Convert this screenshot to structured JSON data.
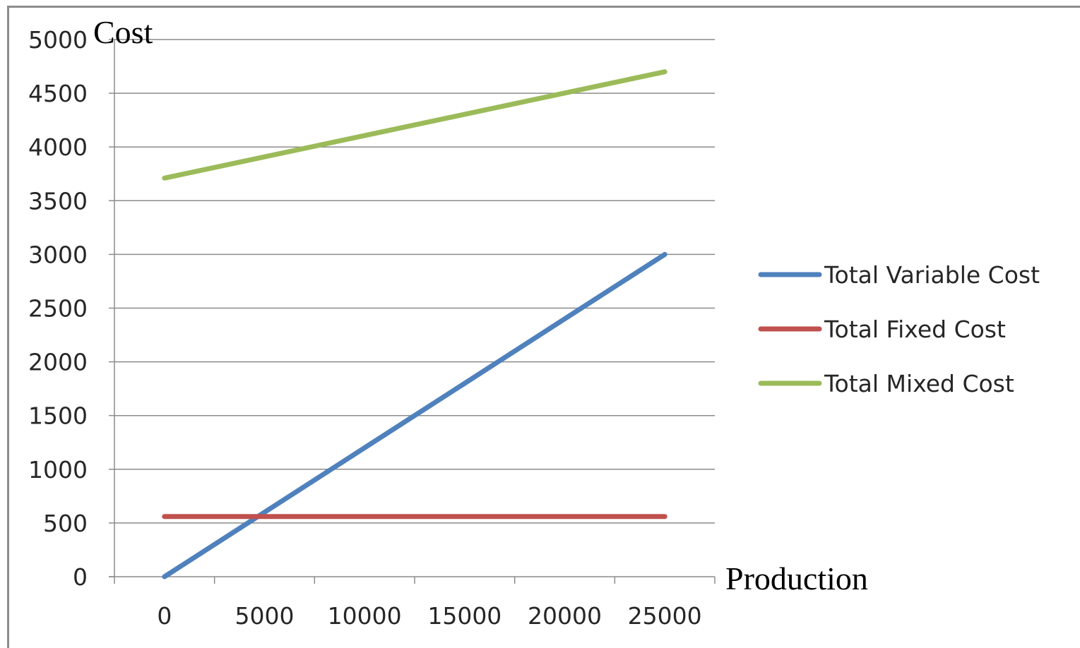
{
  "chart_data": {
    "type": "line",
    "title": "",
    "ylabel": "Cost",
    "xlabel": "Production",
    "categories": [
      "0",
      "5000",
      "10000",
      "15000",
      "20000",
      "25000"
    ],
    "x": [
      0,
      5000,
      10000,
      15000,
      20000,
      25000
    ],
    "ylim": [
      0,
      5000
    ],
    "yticks": [
      "0",
      "500",
      "1000",
      "1500",
      "2000",
      "2500",
      "3000",
      "3500",
      "4000",
      "4500",
      "5000"
    ],
    "ytick_values": [
      0,
      500,
      1000,
      1500,
      2000,
      2500,
      3000,
      3500,
      4000,
      4500,
      5000
    ],
    "grid": true,
    "legend_position": "right",
    "series": [
      {
        "name": "Total Variable Cost",
        "color": "#4f81bd",
        "values": [
          0,
          600,
          1200,
          1800,
          2400,
          3000
        ]
      },
      {
        "name": "Total Fixed Cost",
        "color": "#c0504d",
        "values": [
          560,
          560,
          560,
          560,
          560,
          560
        ]
      },
      {
        "name": "Total Mixed Cost",
        "color": "#9bbb59",
        "values": [
          3710,
          3908,
          4106,
          4304,
          4502,
          4700
        ]
      }
    ]
  }
}
